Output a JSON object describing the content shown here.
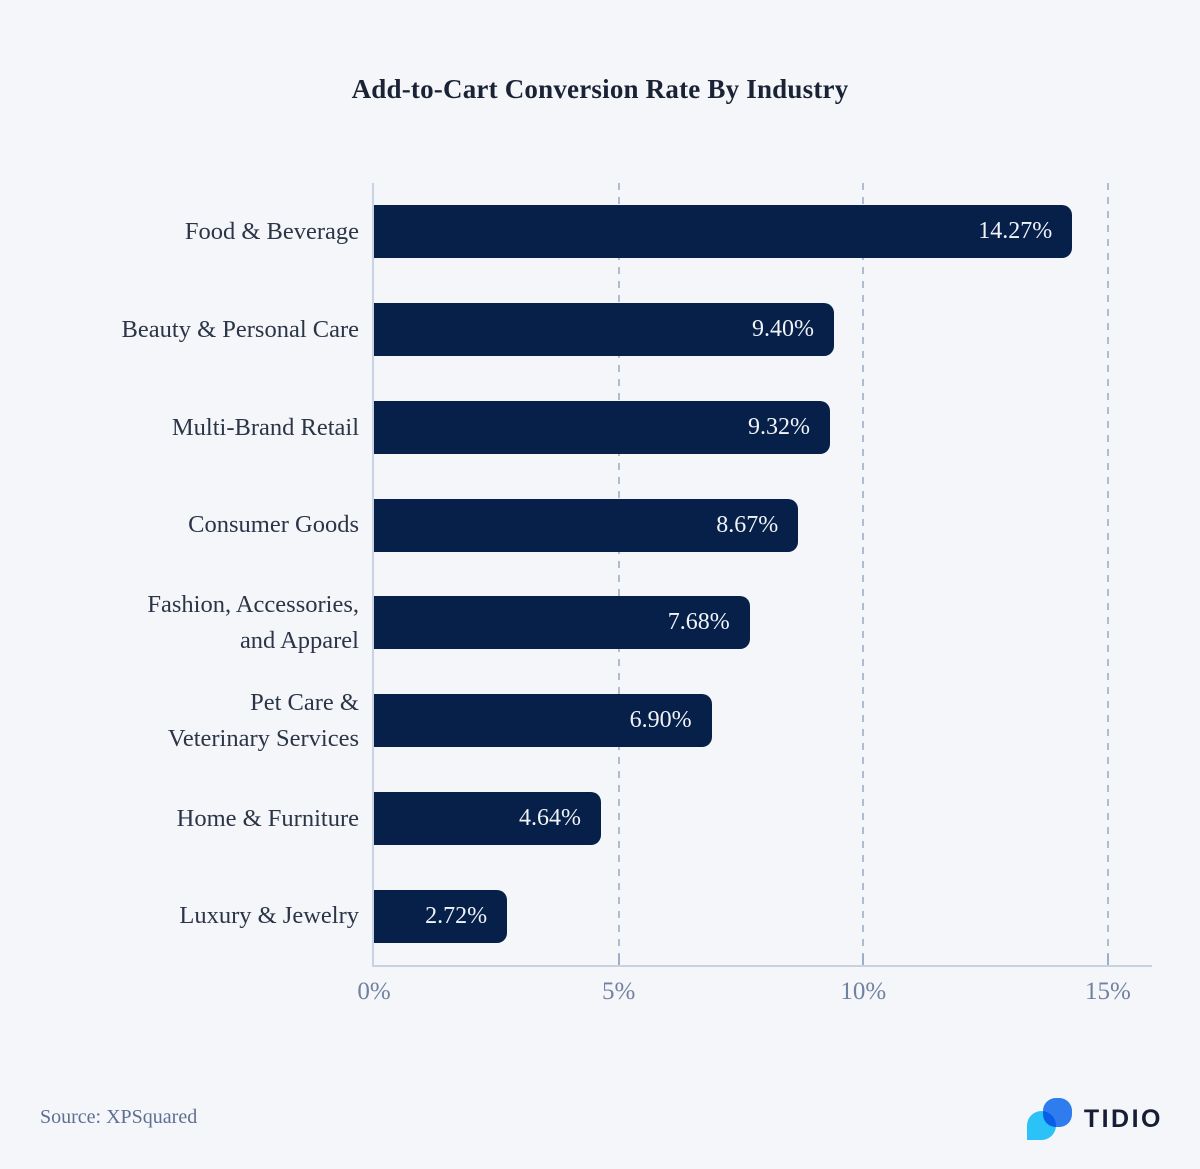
{
  "title": "Add-to-Cart Conversion Rate By Industry",
  "source": {
    "text": "Source: XPSquared"
  },
  "brand": {
    "wordmark": "TIDIO"
  },
  "colors": {
    "background": "#f4f6f9",
    "bar": "#062049",
    "axis_line": "#c7d2e2",
    "gridline": "#aebdd2",
    "tick_label": "#71819f",
    "category_label": "#2b3547",
    "value_label": "#f0f3f7",
    "title": "#1a2336",
    "source_text": "#5e6f93",
    "logo_blue": "#2e7cee",
    "logo_cyan": "#2bc2f7",
    "wordmark": "#161d35"
  },
  "chart_data": {
    "type": "bar",
    "orientation": "horizontal",
    "title": "Add-to-Cart Conversion Rate By Industry",
    "categories": [
      "Food & Beverage",
      "Beauty & Personal Care",
      "Multi-Brand Retail",
      "Consumer Goods",
      "Fashion, Accessories,\nand Apparel",
      "Pet Care &\nVeterinary Services",
      "Home & Furniture",
      "Luxury & Jewelry"
    ],
    "values": [
      14.27,
      9.4,
      9.32,
      8.67,
      7.68,
      6.9,
      4.64,
      2.72
    ],
    "value_labels": [
      "14.27%",
      "9.40%",
      "9.32%",
      "8.67%",
      "7.68%",
      "6.90%",
      "4.64%",
      "2.72%"
    ],
    "xlabel": "",
    "ylabel": "",
    "xlim": [
      0,
      15.9
    ],
    "xticks": [
      {
        "value": 0,
        "label": "0%"
      },
      {
        "value": 5,
        "label": "5%"
      },
      {
        "value": 10,
        "label": "10%"
      },
      {
        "value": 15,
        "label": "15%"
      }
    ],
    "grid": "vertical-dashed",
    "legend": false,
    "bar_color": "#062049",
    "value_label_position": "inside-end"
  }
}
